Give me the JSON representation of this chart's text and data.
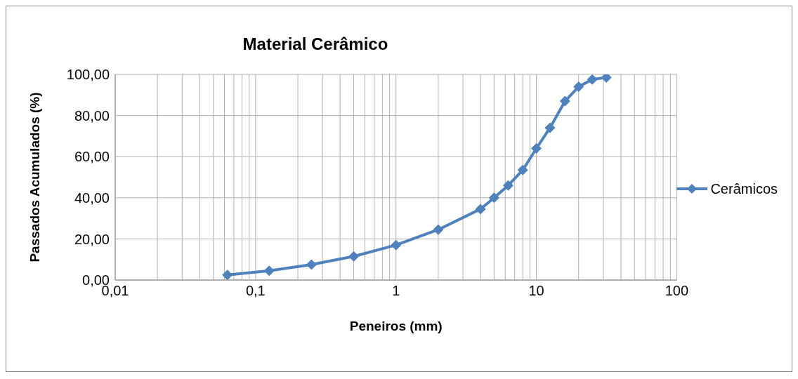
{
  "chart_data": {
    "type": "line",
    "title": "Material Cerâmico",
    "xlabel": "Peneiros (mm)",
    "ylabel": "Passados Acumulados (%)",
    "log": "x",
    "grid": true,
    "legend": "right",
    "marker": "diamond",
    "line_style": "solid",
    "xlim": [
      0.01,
      100
    ],
    "xticks": [
      {
        "value": 0.01,
        "label": "0,01"
      },
      {
        "value": 0.02,
        "label": null
      },
      {
        "value": 0.03,
        "label": null
      },
      {
        "value": 0.04,
        "label": null
      },
      {
        "value": 0.05,
        "label": null
      },
      {
        "value": 0.06,
        "label": null
      },
      {
        "value": 0.07,
        "label": null
      },
      {
        "value": 0.08,
        "label": null
      },
      {
        "value": 0.09,
        "label": null
      },
      {
        "value": 0.1,
        "label": "0,1"
      },
      {
        "value": 0.2,
        "label": null
      },
      {
        "value": 0.3,
        "label": null
      },
      {
        "value": 0.4,
        "label": null
      },
      {
        "value": 0.5,
        "label": null
      },
      {
        "value": 0.6,
        "label": null
      },
      {
        "value": 0.7,
        "label": null
      },
      {
        "value": 0.8,
        "label": null
      },
      {
        "value": 0.9,
        "label": null
      },
      1,
      {
        "value": 2,
        "label": null
      },
      {
        "value": 3,
        "label": null
      },
      {
        "value": 4,
        "label": null
      },
      {
        "value": 5,
        "label": null
      },
      {
        "value": 6,
        "label": null
      },
      {
        "value": 7,
        "label": null
      },
      {
        "value": 8,
        "label": null
      },
      {
        "value": 9,
        "label": null
      },
      10,
      {
        "value": 20,
        "label": null
      },
      {
        "value": 30,
        "label": null
      },
      {
        "value": 40,
        "label": null
      },
      {
        "value": 50,
        "label": null
      },
      {
        "value": 60,
        "label": null
      },
      {
        "value": 70,
        "label": null
      },
      {
        "value": 80,
        "label": null
      },
      {
        "value": 90,
        "label": null
      },
      100
    ],
    "ylim": [
      0,
      100
    ],
    "yticks": [
      {
        "value": 0,
        "label": "0,00"
      },
      {
        "value": 20,
        "label": "20,00"
      },
      {
        "value": 40,
        "label": "40,00"
      },
      {
        "value": 60,
        "label": "60,00"
      },
      {
        "value": 80,
        "label": "80,00"
      },
      {
        "value": 100,
        "label": "100,00"
      }
    ],
    "x": [
      0.063,
      0.125,
      0.25,
      0.5,
      1,
      2,
      4,
      5,
      6.3,
      8,
      10,
      12.5,
      16,
      20,
      25,
      31.5
    ],
    "series": [
      {
        "name": "Cerâmicos",
        "color": "#4f81bd",
        "values": [
          2.5,
          4.5,
          7.5,
          11.5,
          17,
          24.5,
          34.5,
          40,
          46,
          53.5,
          64,
          74,
          87,
          94,
          97.5,
          98.5
        ]
      }
    ]
  }
}
